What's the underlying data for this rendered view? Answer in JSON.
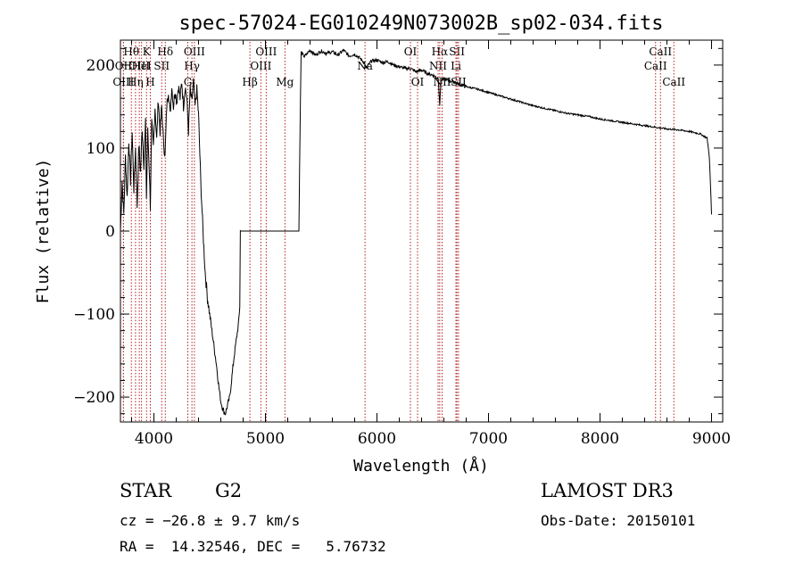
{
  "chart_data": {
    "type": "line",
    "title": "spec-57024-EG010249N073002B_sp02-034.fits",
    "xlabel": "Wavelength (Å)",
    "ylabel": "Flux (relative)",
    "xlim": [
      3700,
      9100
    ],
    "ylim": [
      -230,
      230
    ],
    "x_ticks": [
      4000,
      5000,
      6000,
      7000,
      8000,
      9000
    ],
    "x_tick_labels": [
      "4000",
      "5000",
      "6000",
      "7000",
      "8000",
      "9000"
    ],
    "y_ticks": [
      -200,
      -100,
      0,
      100,
      200
    ],
    "y_tick_labels": [
      "−200",
      "−100",
      "0",
      "100",
      "200"
    ],
    "grid": false,
    "series": [
      {
        "points": [
          [
            3700,
            0
          ],
          [
            3715,
            60
          ],
          [
            3730,
            20
          ],
          [
            3745,
            90
          ],
          [
            3760,
            40
          ],
          [
            3775,
            110
          ],
          [
            3790,
            60
          ],
          [
            3805,
            120
          ],
          [
            3820,
            50
          ],
          [
            3835,
            100
          ],
          [
            3850,
            30
          ],
          [
            3865,
            105
          ],
          [
            3880,
            70
          ],
          [
            3895,
            125
          ],
          [
            3910,
            80
          ],
          [
            3925,
            130
          ],
          [
            3933,
            40
          ],
          [
            3945,
            120
          ],
          [
            3960,
            70
          ],
          [
            3968,
            30
          ],
          [
            3980,
            130
          ],
          [
            3995,
            100
          ],
          [
            4010,
            150
          ],
          [
            4025,
            110
          ],
          [
            4040,
            160
          ],
          [
            4055,
            120
          ],
          [
            4070,
            150
          ],
          [
            4085,
            110
          ],
          [
            4100,
            90
          ],
          [
            4115,
            150
          ],
          [
            4130,
            170
          ],
          [
            4145,
            140
          ],
          [
            4160,
            175
          ],
          [
            4175,
            150
          ],
          [
            4190,
            170
          ],
          [
            4205,
            155
          ],
          [
            4220,
            175
          ],
          [
            4235,
            160
          ],
          [
            4250,
            180
          ],
          [
            4265,
            150
          ],
          [
            4280,
            175
          ],
          [
            4295,
            160
          ],
          [
            4310,
            120
          ],
          [
            4325,
            170
          ],
          [
            4340,
            155
          ],
          [
            4355,
            180
          ],
          [
            4370,
            150
          ],
          [
            4385,
            170
          ],
          [
            4400,
            140
          ],
          [
            4420,
            60
          ],
          [
            4440,
            0
          ],
          [
            4460,
            -50
          ],
          [
            4480,
            -80
          ],
          [
            4500,
            -100
          ],
          [
            4520,
            -120
          ],
          [
            4540,
            -140
          ],
          [
            4560,
            -160
          ],
          [
            4580,
            -185
          ],
          [
            4600,
            -205
          ],
          [
            4620,
            -215
          ],
          [
            4640,
            -220
          ],
          [
            4660,
            -210
          ],
          [
            4680,
            -200
          ],
          [
            4700,
            -175
          ],
          [
            4720,
            -150
          ],
          [
            4740,
            -130
          ],
          [
            4760,
            -110
          ],
          [
            4770,
            -90
          ],
          [
            4775,
            0
          ],
          [
            5300,
            0
          ],
          [
            5310,
            120
          ],
          [
            5320,
            215
          ],
          [
            5350,
            210
          ],
          [
            5400,
            218
          ],
          [
            5450,
            212
          ],
          [
            5500,
            217
          ],
          [
            5550,
            214
          ],
          [
            5600,
            216
          ],
          [
            5650,
            212
          ],
          [
            5700,
            218
          ],
          [
            5750,
            211
          ],
          [
            5800,
            213
          ],
          [
            5850,
            208
          ],
          [
            5890,
            202
          ],
          [
            5900,
            196
          ],
          [
            5950,
            205
          ],
          [
            6000,
            206
          ],
          [
            6050,
            203
          ],
          [
            6100,
            204
          ],
          [
            6150,
            200
          ],
          [
            6200,
            198
          ],
          [
            6250,
            196
          ],
          [
            6300,
            196
          ],
          [
            6350,
            192
          ],
          [
            6400,
            194
          ],
          [
            6450,
            190
          ],
          [
            6500,
            188
          ],
          [
            6550,
            184
          ],
          [
            6563,
            152
          ],
          [
            6575,
            182
          ],
          [
            6600,
            183
          ],
          [
            6650,
            181
          ],
          [
            6700,
            179
          ],
          [
            6750,
            176
          ],
          [
            6800,
            174
          ],
          [
            6900,
            171
          ],
          [
            7000,
            167
          ],
          [
            7100,
            163
          ],
          [
            7200,
            159
          ],
          [
            7300,
            155
          ],
          [
            7400,
            151
          ],
          [
            7500,
            148
          ],
          [
            7600,
            145
          ],
          [
            7700,
            142
          ],
          [
            7800,
            140
          ],
          [
            7900,
            138
          ],
          [
            8000,
            135
          ],
          [
            8100,
            133
          ],
          [
            8200,
            131
          ],
          [
            8300,
            129
          ],
          [
            8400,
            127
          ],
          [
            8500,
            125
          ],
          [
            8600,
            123
          ],
          [
            8700,
            122
          ],
          [
            8800,
            120
          ],
          [
            8900,
            117
          ],
          [
            8960,
            112
          ],
          [
            8980,
            90
          ],
          [
            8995,
            40
          ],
          [
            9000,
            20
          ]
        ]
      }
    ],
    "lines": [
      {
        "name": "Hθ",
        "x": 3798,
        "row": 1
      },
      {
        "name": "OII",
        "x": 3727,
        "row": 2
      },
      {
        "name": "OIII",
        "x": 3869,
        "row": 2
      },
      {
        "name": "OIII",
        "x": 3727,
        "row": 3
      },
      {
        "name": "Hη",
        "x": 3835,
        "row": 3
      },
      {
        "name": "K",
        "x": 3934,
        "row": 1
      },
      {
        "name": "HeI",
        "x": 3889,
        "row": 2
      },
      {
        "name": "H",
        "x": 3968,
        "row": 3
      },
      {
        "name": "SII",
        "x": 4070,
        "row": 2
      },
      {
        "name": "Hδ",
        "x": 4102,
        "row": 1
      },
      {
        "name": "OIII",
        "x": 4363,
        "row": 1
      },
      {
        "name": "Hγ",
        "x": 4341,
        "row": 2
      },
      {
        "name": "G",
        "x": 4304,
        "row": 3
      },
      {
        "name": "Hβ",
        "x": 4861,
        "row": 3
      },
      {
        "name": "OIII",
        "x": 4959,
        "row": 2
      },
      {
        "name": "OIII",
        "x": 5007,
        "row": 1
      },
      {
        "name": "Mg",
        "x": 5175,
        "row": 3
      },
      {
        "name": "Na",
        "x": 5893,
        "row": 2
      },
      {
        "name": "OI",
        "x": 6300,
        "row": 1
      },
      {
        "name": "OI",
        "x": 6364,
        "row": 3
      },
      {
        "name": "Hα",
        "x": 6563,
        "row": 1
      },
      {
        "name": "NII",
        "x": 6548,
        "row": 2
      },
      {
        "name": "NII",
        "x": 6584,
        "row": 3
      },
      {
        "name": "SII",
        "x": 6717,
        "row": 1
      },
      {
        "name": "Li",
        "x": 6708,
        "row": 2
      },
      {
        "name": "SII",
        "x": 6731,
        "row": 3
      },
      {
        "name": "CaII",
        "x": 8542,
        "row": 1
      },
      {
        "name": "CaII",
        "x": 8498,
        "row": 2
      },
      {
        "name": "CaII",
        "x": 8662,
        "row": 3
      }
    ]
  },
  "info": {
    "object_class": "STAR",
    "subclass": "G2",
    "survey": "LAMOST DR3",
    "redshift_text": "cz = −26.8 ± 9.7 km/s",
    "obs_date_text": "Obs-Date: 20150101",
    "coords_text": "RA =  14.32546, DEC =   5.76732"
  },
  "colors": {
    "line_marker": "#b22222",
    "spectrum": "#000000"
  }
}
